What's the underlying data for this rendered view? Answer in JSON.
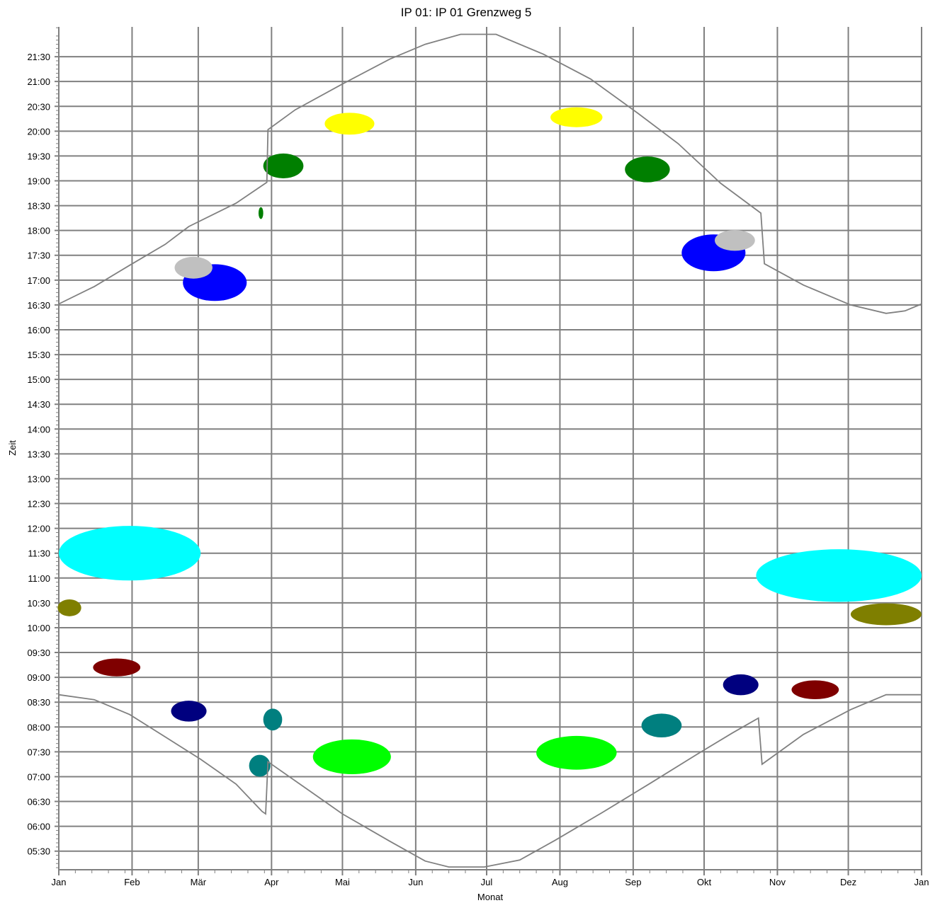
{
  "chart_data": {
    "type": "scatter",
    "title": "IP 01: IP 01 Grenzweg 5",
    "xlabel": "Monat",
    "ylabel": "Zeit",
    "x_unit": "day of year",
    "y_unit": "hour of day",
    "xlim": [
      0,
      365
    ],
    "ylim": [
      5.125,
      22.1
    ],
    "x_ticks": [
      {
        "label": "Jan",
        "x": 0
      },
      {
        "label": "Feb",
        "x": 31
      },
      {
        "label": "Mär",
        "x": 59
      },
      {
        "label": "Apr",
        "x": 90
      },
      {
        "label": "Mai",
        "x": 120
      },
      {
        "label": "Jun",
        "x": 151
      },
      {
        "label": "Jul",
        "x": 181
      },
      {
        "label": "Aug",
        "x": 212
      },
      {
        "label": "Sep",
        "x": 243
      },
      {
        "label": "Okt",
        "x": 273
      },
      {
        "label": "Nov",
        "x": 304
      },
      {
        "label": "Dez",
        "x": 334
      },
      {
        "label": "Jan",
        "x": 365
      }
    ],
    "y_ticks": [
      {
        "label": "05:30",
        "y": 5.5
      },
      {
        "label": "06:00",
        "y": 6.0
      },
      {
        "label": "06:30",
        "y": 6.5
      },
      {
        "label": "07:00",
        "y": 7.0
      },
      {
        "label": "07:30",
        "y": 7.5
      },
      {
        "label": "08:00",
        "y": 8.0
      },
      {
        "label": "08:30",
        "y": 8.5
      },
      {
        "label": "09:00",
        "y": 9.0
      },
      {
        "label": "09:30",
        "y": 9.5
      },
      {
        "label": "10:00",
        "y": 10.0
      },
      {
        "label": "10:30",
        "y": 10.5
      },
      {
        "label": "11:00",
        "y": 11.0
      },
      {
        "label": "11:30",
        "y": 11.5
      },
      {
        "label": "12:00",
        "y": 12.0
      },
      {
        "label": "12:30",
        "y": 12.5
      },
      {
        "label": "13:00",
        "y": 13.0
      },
      {
        "label": "13:30",
        "y": 13.5
      },
      {
        "label": "14:00",
        "y": 14.0
      },
      {
        "label": "14:30",
        "y": 14.5
      },
      {
        "label": "15:00",
        "y": 15.0
      },
      {
        "label": "15:30",
        "y": 15.5
      },
      {
        "label": "16:00",
        "y": 16.0
      },
      {
        "label": "16:30",
        "y": 16.5
      },
      {
        "label": "17:00",
        "y": 17.0
      },
      {
        "label": "17:30",
        "y": 17.5
      },
      {
        "label": "18:00",
        "y": 18.0
      },
      {
        "label": "18:30",
        "y": 18.5
      },
      {
        "label": "19:00",
        "y": 19.0
      },
      {
        "label": "19:30",
        "y": 19.5
      },
      {
        "label": "20:00",
        "y": 20.0
      },
      {
        "label": "20:30",
        "y": 20.5
      },
      {
        "label": "21:00",
        "y": 21.0
      },
      {
        "label": "21:30",
        "y": 21.5
      }
    ],
    "grid": true,
    "sunset_line": [
      [
        0,
        16.52
      ],
      [
        15,
        16.87
      ],
      [
        30,
        17.3
      ],
      [
        45,
        17.72
      ],
      [
        55,
        18.08
      ],
      [
        75,
        18.55
      ],
      [
        88,
        18.97
      ],
      [
        88.5,
        20.03
      ],
      [
        100,
        20.43
      ],
      [
        120,
        20.95
      ],
      [
        140,
        21.45
      ],
      [
        155,
        21.75
      ],
      [
        170,
        21.95
      ],
      [
        185,
        21.95
      ],
      [
        205,
        21.55
      ],
      [
        225,
        21.05
      ],
      [
        245,
        20.36
      ],
      [
        262,
        19.75
      ],
      [
        280,
        18.95
      ],
      [
        297,
        18.35
      ],
      [
        298.5,
        17.33
      ],
      [
        315,
        16.9
      ],
      [
        335,
        16.5
      ],
      [
        350,
        16.33
      ],
      [
        358,
        16.38
      ],
      [
        365,
        16.52
      ]
    ],
    "sunrise_line": [
      [
        0,
        8.65
      ],
      [
        15,
        8.55
      ],
      [
        30,
        8.25
      ],
      [
        45,
        7.8
      ],
      [
        60,
        7.35
      ],
      [
        75,
        6.85
      ],
      [
        86,
        6.3
      ],
      [
        87.5,
        6.25
      ],
      [
        88.5,
        7.3
      ],
      [
        105,
        6.75
      ],
      [
        120,
        6.25
      ],
      [
        140,
        5.7
      ],
      [
        155,
        5.3
      ],
      [
        165,
        5.18
      ],
      [
        180,
        5.18
      ],
      [
        195,
        5.32
      ],
      [
        210,
        5.72
      ],
      [
        230,
        6.28
      ],
      [
        250,
        6.86
      ],
      [
        270,
        7.45
      ],
      [
        285,
        7.88
      ],
      [
        296,
        8.18
      ],
      [
        297.5,
        7.25
      ],
      [
        315,
        7.85
      ],
      [
        335,
        8.35
      ],
      [
        350,
        8.65
      ],
      [
        365,
        8.65
      ]
    ],
    "glare_areas": [
      {
        "color": "#ffff00",
        "x": 123,
        "y": 20.15,
        "rx": 10.5,
        "ry": 0.22
      },
      {
        "color": "#ffff00",
        "x": 219,
        "y": 20.28,
        "rx": 11,
        "ry": 0.2
      },
      {
        "color": "#007f00",
        "x": 95,
        "y": 19.3,
        "rx": 8.5,
        "ry": 0.25
      },
      {
        "color": "#007f00",
        "x": 249,
        "y": 19.23,
        "rx": 9.5,
        "ry": 0.26
      },
      {
        "color": "#007f00",
        "x": 85.5,
        "y": 18.35,
        "rx": 1,
        "ry": 0.12
      },
      {
        "color": "#0000ff",
        "x": 66,
        "y": 16.95,
        "rx": 13.5,
        "ry": 0.37
      },
      {
        "color": "#0000ff",
        "x": 277,
        "y": 17.55,
        "rx": 13.5,
        "ry": 0.37
      },
      {
        "color": "#c0c0c0",
        "x": 57,
        "y": 17.25,
        "rx": 8,
        "ry": 0.22
      },
      {
        "color": "#c0c0c0",
        "x": 286,
        "y": 17.8,
        "rx": 8.5,
        "ry": 0.21
      },
      {
        "color": "#00ffff",
        "x": 30,
        "y": 11.5,
        "rx": 30,
        "ry": 0.55
      },
      {
        "color": "#00ffff",
        "x": 330,
        "y": 11.05,
        "rx": 35,
        "ry": 0.53
      },
      {
        "color": "#7f7f00",
        "x": 4.5,
        "y": 10.4,
        "rx": 5,
        "ry": 0.17
      },
      {
        "color": "#7f7f00",
        "x": 350,
        "y": 10.27,
        "rx": 15,
        "ry": 0.22
      },
      {
        "color": "#7f0000",
        "x": 24.5,
        "y": 9.2,
        "rx": 10,
        "ry": 0.18
      },
      {
        "color": "#7f0000",
        "x": 320,
        "y": 8.75,
        "rx": 10,
        "ry": 0.19
      },
      {
        "color": "#00007f",
        "x": 55,
        "y": 8.32,
        "rx": 7.5,
        "ry": 0.21
      },
      {
        "color": "#00007f",
        "x": 288.5,
        "y": 8.85,
        "rx": 7.5,
        "ry": 0.21
      },
      {
        "color": "#007f7f",
        "x": 90.5,
        "y": 8.15,
        "rx": 4,
        "ry": 0.22
      },
      {
        "color": "#007f7f",
        "x": 85,
        "y": 7.22,
        "rx": 4.5,
        "ry": 0.22
      },
      {
        "color": "#007f7f",
        "x": 255,
        "y": 8.03,
        "rx": 8.5,
        "ry": 0.24
      },
      {
        "color": "#00ff00",
        "x": 124,
        "y": 7.4,
        "rx": 16.5,
        "ry": 0.35
      },
      {
        "color": "#00ff00",
        "x": 219,
        "y": 7.48,
        "rx": 17,
        "ry": 0.34
      }
    ]
  }
}
